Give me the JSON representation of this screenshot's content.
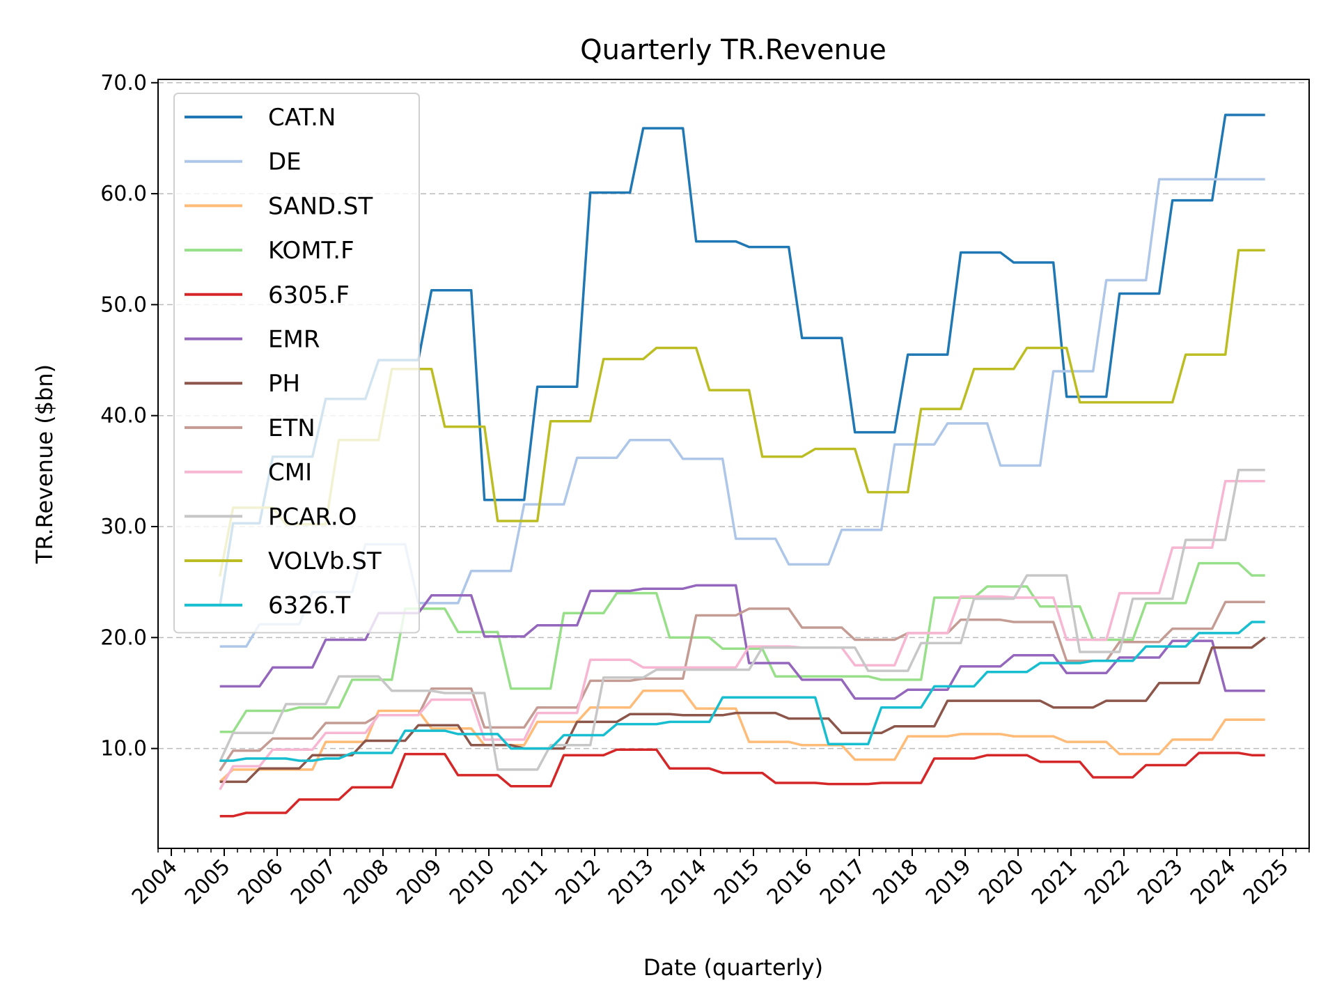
{
  "chart_data": {
    "type": "line",
    "title": "Quarterly TR.Revenue",
    "xlabel": "Date (quarterly)",
    "ylabel": "TR.Revenue ($bn)",
    "x_ticks": [
      "2004",
      "2005",
      "2006",
      "2007",
      "2008",
      "2009",
      "2010",
      "2011",
      "2012",
      "2013",
      "2014",
      "2015",
      "2016",
      "2017",
      "2018",
      "2019",
      "2020",
      "2021",
      "2022",
      "2023",
      "2024",
      "2025"
    ],
    "xlim": [
      "2003-10-01",
      "2025-07-01"
    ],
    "y_ticks": [
      "10.0",
      "20.0",
      "30.0",
      "40.0",
      "50.0",
      "60.0",
      "70.0"
    ],
    "ylim": [
      1.0,
      70.3
    ],
    "grid": "horizontal dashed",
    "legend_position": "upper-left",
    "x": [
      "2004-12",
      "2005-03",
      "2005-06",
      "2005-09",
      "2005-12",
      "2006-03",
      "2006-06",
      "2006-09",
      "2006-12",
      "2007-03",
      "2007-06",
      "2007-09",
      "2007-12",
      "2008-03",
      "2008-06",
      "2008-09",
      "2008-12",
      "2009-03",
      "2009-06",
      "2009-09",
      "2009-12",
      "2010-03",
      "2010-06",
      "2010-09",
      "2010-12",
      "2011-03",
      "2011-06",
      "2011-09",
      "2011-12",
      "2012-03",
      "2012-06",
      "2012-09",
      "2012-12",
      "2013-03",
      "2013-06",
      "2013-09",
      "2013-12",
      "2014-03",
      "2014-06",
      "2014-09",
      "2014-12",
      "2015-03",
      "2015-06",
      "2015-09",
      "2015-12",
      "2016-03",
      "2016-06",
      "2016-09",
      "2016-12",
      "2017-03",
      "2017-06",
      "2017-09",
      "2017-12",
      "2018-03",
      "2018-06",
      "2018-09",
      "2018-12",
      "2019-03",
      "2019-06",
      "2019-09",
      "2019-12",
      "2020-03",
      "2020-06",
      "2020-09",
      "2020-12",
      "2021-03",
      "2021-06",
      "2021-09",
      "2021-12",
      "2022-03",
      "2022-06",
      "2022-09",
      "2022-12",
      "2023-03",
      "2023-06",
      "2023-09",
      "2023-12",
      "2024-03",
      "2024-06",
      "2024-09"
    ],
    "series": [
      {
        "name": "CAT.N",
        "color": "#1f77b4",
        "values": [
          22.8,
          30.3,
          30.3,
          30.3,
          36.3,
          36.3,
          36.3,
          36.3,
          41.5,
          41.5,
          41.5,
          41.5,
          45.0,
          45.0,
          45.0,
          45.0,
          51.3,
          51.3,
          51.3,
          51.3,
          32.4,
          32.4,
          32.4,
          32.4,
          42.6,
          42.6,
          42.6,
          42.6,
          60.1,
          60.1,
          60.1,
          60.1,
          65.9,
          65.9,
          65.9,
          65.9,
          55.7,
          55.7,
          55.7,
          55.7,
          55.2,
          55.2,
          55.2,
          55.2,
          47.0,
          47.0,
          47.0,
          47.0,
          38.5,
          38.5,
          38.5,
          38.5,
          45.5,
          45.5,
          45.5,
          45.5,
          54.7,
          54.7,
          54.7,
          54.7,
          53.8,
          53.8,
          53.8,
          53.8,
          41.7,
          41.7,
          41.7,
          41.7,
          51.0,
          51.0,
          51.0,
          51.0,
          59.4,
          59.4,
          59.4,
          59.4,
          67.1,
          67.1,
          67.1,
          67.1
        ]
      },
      {
        "name": "DE",
        "color": "#aec7e8",
        "values": [
          19.2,
          19.2,
          19.2,
          21.2,
          21.2,
          21.2,
          21.2,
          24.1,
          24.1,
          24.1,
          24.1,
          28.4,
          28.4,
          28.4,
          28.4,
          23.1,
          23.1,
          23.1,
          23.1,
          26.0,
          26.0,
          26.0,
          26.0,
          32.0,
          32.0,
          32.0,
          32.0,
          36.2,
          36.2,
          36.2,
          36.2,
          37.8,
          37.8,
          37.8,
          37.8,
          36.1,
          36.1,
          36.1,
          36.1,
          28.9,
          28.9,
          28.9,
          28.9,
          26.6,
          26.6,
          26.6,
          26.6,
          29.7,
          29.7,
          29.7,
          29.7,
          37.4,
          37.4,
          37.4,
          37.4,
          39.3,
          39.3,
          39.3,
          39.3,
          35.5,
          35.5,
          35.5,
          35.5,
          44.0,
          44.0,
          44.0,
          44.0,
          52.2,
          52.2,
          52.2,
          52.2,
          61.3,
          61.3,
          61.3,
          61.3,
          61.3,
          61.3,
          61.3,
          61.3,
          61.3
        ]
      },
      {
        "name": "SAND.ST",
        "color": "#ffbb78",
        "values": [
          7.0,
          8.1,
          8.1,
          8.1,
          8.1,
          8.1,
          8.1,
          8.1,
          10.6,
          10.6,
          10.6,
          10.6,
          13.4,
          13.4,
          13.4,
          13.4,
          11.8,
          11.8,
          11.8,
          11.8,
          10.3,
          10.3,
          10.3,
          10.3,
          12.4,
          12.4,
          12.4,
          12.4,
          13.7,
          13.7,
          13.7,
          13.7,
          15.2,
          15.2,
          15.2,
          15.2,
          13.6,
          13.6,
          13.6,
          13.6,
          10.6,
          10.6,
          10.6,
          10.6,
          10.3,
          10.3,
          10.3,
          10.3,
          9.0,
          9.0,
          9.0,
          9.0,
          11.1,
          11.1,
          11.1,
          11.1,
          11.3,
          11.3,
          11.3,
          11.3,
          11.1,
          11.1,
          11.1,
          11.1,
          10.6,
          10.6,
          10.6,
          10.6,
          9.5,
          9.5,
          9.5,
          9.5,
          10.8,
          10.8,
          10.8,
          10.8,
          12.6,
          12.6,
          12.6,
          12.6
        ]
      },
      {
        "name": "KOMT.F",
        "color": "#98df8a",
        "values": [
          11.5,
          11.5,
          13.4,
          13.4,
          13.4,
          13.4,
          13.7,
          13.7,
          13.7,
          13.7,
          16.2,
          16.2,
          16.2,
          16.2,
          22.6,
          22.6,
          22.6,
          22.6,
          20.5,
          20.5,
          20.5,
          20.5,
          15.4,
          15.4,
          15.4,
          15.4,
          22.2,
          22.2,
          22.2,
          22.2,
          24.0,
          24.0,
          24.0,
          24.0,
          20.0,
          20.0,
          20.0,
          20.0,
          19.0,
          19.0,
          19.0,
          19.0,
          16.5,
          16.5,
          16.5,
          16.5,
          16.5,
          16.5,
          16.5,
          16.5,
          16.2,
          16.2,
          16.2,
          16.2,
          23.6,
          23.6,
          23.6,
          23.6,
          24.6,
          24.6,
          24.6,
          24.6,
          22.8,
          22.8,
          22.8,
          22.8,
          19.8,
          19.8,
          19.8,
          19.8,
          23.1,
          23.1,
          23.1,
          23.1,
          26.7,
          26.7,
          26.7,
          26.7,
          25.6,
          25.6
        ]
      },
      {
        "name": "6305.F",
        "color": "#d62728",
        "values": [
          3.9,
          3.9,
          4.2,
          4.2,
          4.2,
          4.2,
          5.4,
          5.4,
          5.4,
          5.4,
          6.5,
          6.5,
          6.5,
          6.5,
          9.5,
          9.5,
          9.5,
          9.5,
          7.6,
          7.6,
          7.6,
          7.6,
          6.6,
          6.6,
          6.6,
          6.6,
          9.4,
          9.4,
          9.4,
          9.4,
          9.9,
          9.9,
          9.9,
          9.9,
          8.2,
          8.2,
          8.2,
          8.2,
          7.8,
          7.8,
          7.8,
          7.8,
          6.9,
          6.9,
          6.9,
          6.9,
          6.8,
          6.8,
          6.8,
          6.8,
          6.9,
          6.9,
          6.9,
          6.9,
          9.1,
          9.1,
          9.1,
          9.1,
          9.4,
          9.4,
          9.4,
          9.4,
          8.8,
          8.8,
          8.8,
          8.8,
          7.4,
          7.4,
          7.4,
          7.4,
          8.5,
          8.5,
          8.5,
          8.5,
          9.6,
          9.6,
          9.6,
          9.6,
          9.4,
          9.4
        ]
      },
      {
        "name": "EMR",
        "color": "#9467bd",
        "values": [
          15.6,
          15.6,
          15.6,
          15.6,
          17.3,
          17.3,
          17.3,
          17.3,
          19.8,
          19.8,
          19.8,
          19.8,
          22.2,
          22.2,
          22.2,
          22.2,
          23.8,
          23.8,
          23.8,
          23.8,
          20.1,
          20.1,
          20.1,
          20.1,
          21.1,
          21.1,
          21.1,
          21.1,
          24.2,
          24.2,
          24.2,
          24.2,
          24.4,
          24.4,
          24.4,
          24.4,
          24.7,
          24.7,
          24.7,
          24.7,
          17.7,
          17.7,
          17.7,
          17.7,
          16.2,
          16.2,
          16.2,
          16.2,
          14.5,
          14.5,
          14.5,
          14.5,
          15.3,
          15.3,
          15.3,
          15.3,
          17.4,
          17.4,
          17.4,
          17.4,
          18.4,
          18.4,
          18.4,
          18.4,
          16.8,
          16.8,
          16.8,
          16.8,
          18.2,
          18.2,
          18.2,
          18.2,
          19.7,
          19.7,
          19.7,
          19.7,
          15.2,
          15.2,
          15.2,
          15.2
        ]
      },
      {
        "name": "PH",
        "color": "#8c564b",
        "values": [
          7.0,
          7.0,
          7.0,
          8.2,
          8.2,
          8.2,
          8.2,
          9.4,
          9.4,
          9.4,
          9.4,
          10.7,
          10.7,
          10.7,
          10.7,
          12.1,
          12.1,
          12.1,
          12.1,
          10.3,
          10.3,
          10.3,
          10.3,
          10.0,
          10.0,
          10.0,
          10.0,
          12.4,
          12.4,
          12.4,
          12.4,
          13.1,
          13.1,
          13.1,
          13.1,
          13.0,
          13.0,
          13.0,
          13.0,
          13.2,
          13.2,
          13.2,
          13.2,
          12.7,
          12.7,
          12.7,
          12.7,
          11.4,
          11.4,
          11.4,
          11.4,
          12.0,
          12.0,
          12.0,
          12.0,
          14.3,
          14.3,
          14.3,
          14.3,
          14.3,
          14.3,
          14.3,
          14.3,
          13.7,
          13.7,
          13.7,
          13.7,
          14.3,
          14.3,
          14.3,
          14.3,
          15.9,
          15.9,
          15.9,
          15.9,
          19.1,
          19.1,
          19.1,
          19.1,
          20.0
        ]
      },
      {
        "name": "ETN",
        "color": "#c49c94",
        "values": [
          8.0,
          9.8,
          9.8,
          9.8,
          10.9,
          10.9,
          10.9,
          10.9,
          12.3,
          12.3,
          12.3,
          12.3,
          13.0,
          13.0,
          13.0,
          13.0,
          15.4,
          15.4,
          15.4,
          15.4,
          11.9,
          11.9,
          11.9,
          11.9,
          13.7,
          13.7,
          13.7,
          13.7,
          16.1,
          16.1,
          16.1,
          16.1,
          16.3,
          16.3,
          16.3,
          16.3,
          22.0,
          22.0,
          22.0,
          22.0,
          22.6,
          22.6,
          22.6,
          22.6,
          20.9,
          20.9,
          20.9,
          20.9,
          19.8,
          19.8,
          19.8,
          19.8,
          20.4,
          20.4,
          20.4,
          20.4,
          21.6,
          21.6,
          21.6,
          21.6,
          21.4,
          21.4,
          21.4,
          21.4,
          17.9,
          17.9,
          17.9,
          17.9,
          19.6,
          19.6,
          19.6,
          19.6,
          20.8,
          20.8,
          20.8,
          20.8,
          23.2,
          23.2,
          23.2,
          23.2
        ]
      },
      {
        "name": "CMI",
        "color": "#f7b6d2",
        "values": [
          6.3,
          8.4,
          8.4,
          8.4,
          9.9,
          9.9,
          9.9,
          9.9,
          11.4,
          11.4,
          11.4,
          11.4,
          13.0,
          13.0,
          13.0,
          13.0,
          14.4,
          14.4,
          14.4,
          14.4,
          10.8,
          10.8,
          10.8,
          10.8,
          13.2,
          13.2,
          13.2,
          13.2,
          18.0,
          18.0,
          18.0,
          18.0,
          17.3,
          17.3,
          17.3,
          17.3,
          17.3,
          17.3,
          17.3,
          17.3,
          19.2,
          19.2,
          19.2,
          19.2,
          19.1,
          19.1,
          19.1,
          19.1,
          17.5,
          17.5,
          17.5,
          17.5,
          20.4,
          20.4,
          20.4,
          20.4,
          23.7,
          23.7,
          23.7,
          23.7,
          23.6,
          23.6,
          23.6,
          23.6,
          19.8,
          19.8,
          19.8,
          19.8,
          24.0,
          24.0,
          24.0,
          24.0,
          28.1,
          28.1,
          28.1,
          28.1,
          34.1,
          34.1,
          34.1,
          34.1
        ]
      },
      {
        "name": "PCAR.O",
        "color": "#c7c7c7",
        "values": [
          8.8,
          11.4,
          11.4,
          11.4,
          11.4,
          14.0,
          14.0,
          14.0,
          14.0,
          16.5,
          16.5,
          16.5,
          16.5,
          15.2,
          15.2,
          15.2,
          15.2,
          15.0,
          15.0,
          15.0,
          15.0,
          8.1,
          8.1,
          8.1,
          8.1,
          10.3,
          10.3,
          10.3,
          10.3,
          16.4,
          16.4,
          16.4,
          16.4,
          17.1,
          17.1,
          17.1,
          17.1,
          17.1,
          17.1,
          17.1,
          17.1,
          19.1,
          19.1,
          19.1,
          19.1,
          19.1,
          19.1,
          19.1,
          19.1,
          17.0,
          17.0,
          17.0,
          17.0,
          19.5,
          19.5,
          19.5,
          19.5,
          23.5,
          23.5,
          23.5,
          23.5,
          25.6,
          25.6,
          25.6,
          25.6,
          18.7,
          18.7,
          18.7,
          18.7,
          23.5,
          23.5,
          23.5,
          23.5,
          28.8,
          28.8,
          28.8,
          28.8,
          35.1,
          35.1,
          35.1
        ]
      },
      {
        "name": "VOLVb.ST",
        "color": "#bcbd22",
        "values": [
          25.5,
          31.7,
          31.7,
          31.7,
          31.7,
          30.2,
          30.2,
          30.2,
          30.2,
          37.8,
          37.8,
          37.8,
          37.8,
          44.2,
          44.2,
          44.2,
          44.2,
          39.0,
          39.0,
          39.0,
          39.0,
          30.5,
          30.5,
          30.5,
          30.5,
          39.5,
          39.5,
          39.5,
          39.5,
          45.1,
          45.1,
          45.1,
          45.1,
          46.1,
          46.1,
          46.1,
          46.1,
          42.3,
          42.3,
          42.3,
          42.3,
          36.3,
          36.3,
          36.3,
          36.3,
          37.0,
          37.0,
          37.0,
          37.0,
          33.1,
          33.1,
          33.1,
          33.1,
          40.6,
          40.6,
          40.6,
          40.6,
          44.2,
          44.2,
          44.2,
          44.2,
          46.1,
          46.1,
          46.1,
          46.1,
          41.2,
          41.2,
          41.2,
          41.2,
          41.2,
          41.2,
          41.2,
          41.2,
          45.5,
          45.5,
          45.5,
          45.5,
          54.9,
          54.9,
          54.9
        ]
      },
      {
        "name": "6326.T",
        "color": "#17becf",
        "values": [
          8.9,
          8.9,
          9.1,
          9.1,
          9.1,
          9.1,
          8.9,
          8.9,
          9.1,
          9.1,
          9.6,
          9.6,
          9.6,
          9.6,
          11.6,
          11.6,
          11.6,
          11.6,
          11.3,
          11.3,
          11.3,
          11.3,
          10.0,
          10.0,
          10.0,
          10.0,
          11.2,
          11.2,
          11.2,
          11.2,
          12.2,
          12.2,
          12.2,
          12.2,
          12.4,
          12.4,
          12.4,
          12.4,
          14.6,
          14.6,
          14.6,
          14.6,
          14.6,
          14.6,
          14.6,
          14.6,
          10.4,
          10.4,
          10.4,
          10.4,
          13.7,
          13.7,
          13.7,
          13.7,
          15.6,
          15.6,
          15.6,
          15.6,
          16.9,
          16.9,
          16.9,
          16.9,
          17.7,
          17.7,
          17.7,
          17.7,
          17.9,
          17.9,
          17.9,
          17.9,
          19.2,
          19.2,
          19.2,
          19.2,
          20.4,
          20.4,
          20.4,
          20.4,
          21.4,
          21.4
        ]
      }
    ]
  }
}
